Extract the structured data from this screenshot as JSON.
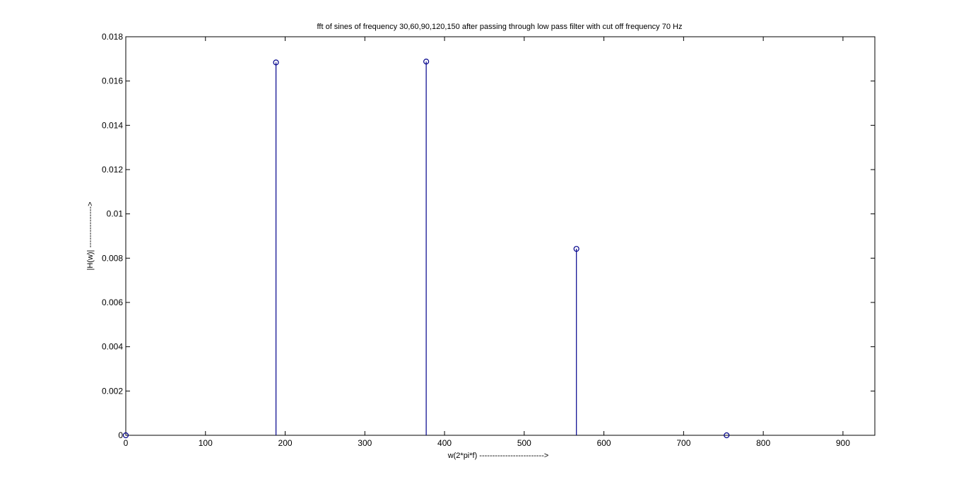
{
  "chart_data": {
    "type": "stem",
    "title": "fft of sines of frequency 30,60,90,120,150 after passing through low pass filter with cut off frequency 70 Hz",
    "xlabel": "w(2*pi*f) ------------------------->",
    "ylabel": "|H(w)|  ---------------->",
    "xlim": [
      0,
      940
    ],
    "ylim": [
      0,
      0.018
    ],
    "xticks": [
      0,
      100,
      200,
      300,
      400,
      500,
      600,
      700,
      800,
      900
    ],
    "xtick_labels": [
      "0",
      "100",
      "200",
      "300",
      "400",
      "500",
      "600",
      "700",
      "800",
      "900"
    ],
    "yticks": [
      0,
      0.002,
      0.004,
      0.006,
      0.008,
      0.01,
      0.012,
      0.014,
      0.016,
      0.018
    ],
    "ytick_labels": [
      "0",
      "0.002",
      "0.004",
      "0.006",
      "0.008",
      "0.01",
      "0.012",
      "0.014",
      "0.016",
      "0.018"
    ],
    "grid": false,
    "series": [
      {
        "x": [
          0,
          188.5,
          377,
          565.5,
          754
        ],
        "y": [
          0,
          0.01684,
          0.01688,
          0.00842,
          0
        ],
        "color": "#00008b",
        "marker": "circle"
      }
    ]
  }
}
